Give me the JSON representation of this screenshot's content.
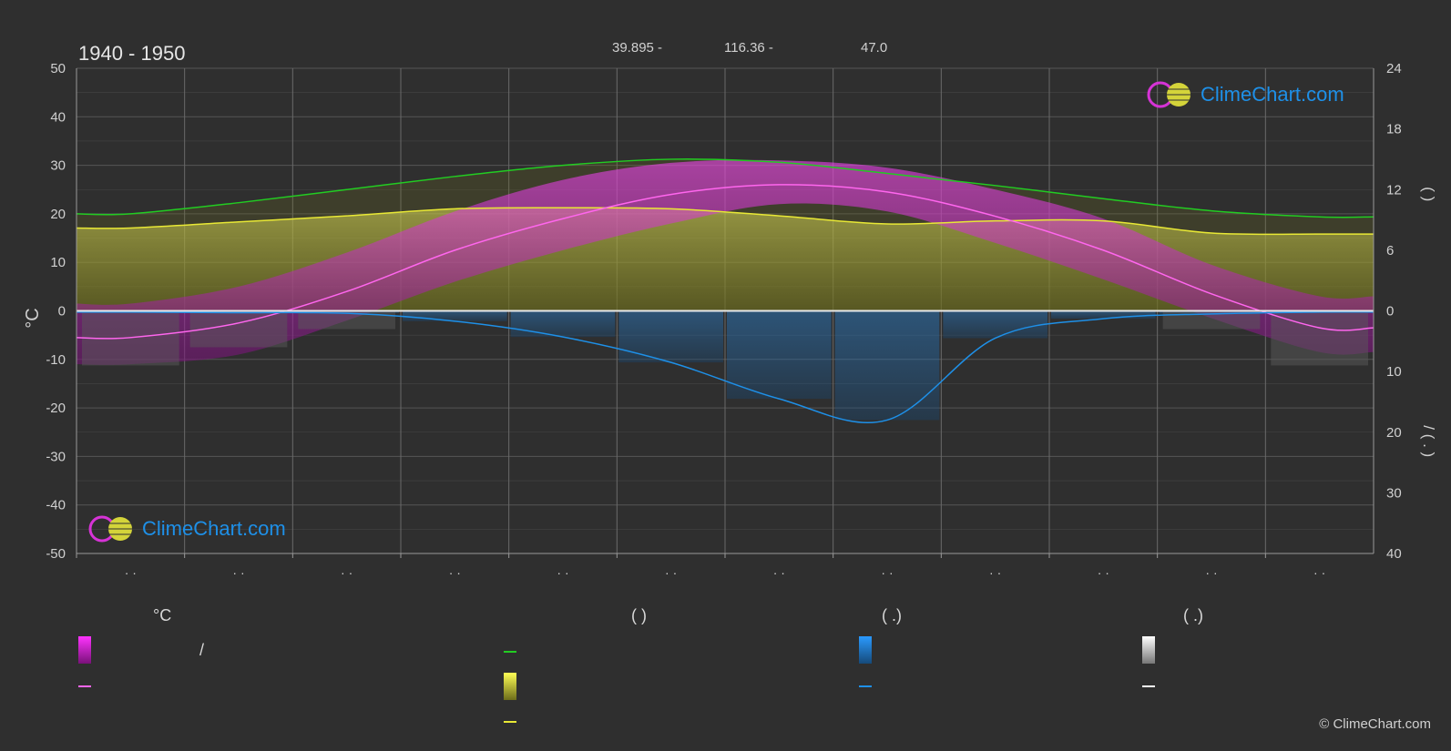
{
  "header": {
    "period": "1940 - 1950",
    "lat": "39.895 -",
    "lon": "116.36 -",
    "elev": "47.0"
  },
  "logo_text": "ClimeChart.com",
  "copyright": "© ClimeChart.com",
  "colors": {
    "background": "#2f2f2f",
    "grid": "#5a5a5a",
    "daylight": "#22cc22",
    "sunshine": "#e8e835",
    "temp_mean": "#ff66ee",
    "temp_band": "#cc22cc",
    "precip": "#1e90e8",
    "snow": "#ffffff"
  },
  "legend": {
    "temp_header": "°C",
    "col2_header": "(          )",
    "col3_header": "(   .)",
    "col4_header": "(   .)",
    "slash": "/"
  },
  "chart_data": {
    "type": "line",
    "months": 12,
    "left_axis": {
      "label": "°C",
      "range": [
        -50,
        50
      ],
      "ticks": [
        50,
        40,
        30,
        20,
        10,
        0,
        -10,
        -20,
        -30,
        -40,
        -50
      ]
    },
    "right_axis_top": {
      "label": "( )",
      "range": [
        0,
        24
      ],
      "ticks": [
        24,
        18,
        12,
        6,
        0
      ]
    },
    "right_axis_bottom": {
      "label": "/ ( . )",
      "range": [
        0,
        40
      ],
      "ticks": [
        0,
        10,
        20,
        30,
        40
      ]
    },
    "x_tick_labels": [
      "· ·",
      "· ·",
      "· ·",
      "· ·",
      "· ·",
      "· ·",
      "· ·",
      "· ·",
      "· ·",
      "· ·",
      "· ·",
      "· ·"
    ],
    "series": [
      {
        "key": "daylight",
        "unit": "hours",
        "values": [
          9.6,
          10.7,
          12.0,
          13.3,
          14.4,
          15.0,
          14.7,
          13.6,
          12.4,
          11.1,
          9.9,
          9.3
        ]
      },
      {
        "key": "sunshine",
        "unit": "hours",
        "values": [
          8.2,
          8.8,
          9.4,
          10.1,
          10.2,
          10.1,
          9.4,
          8.6,
          8.9,
          8.9,
          7.7,
          7.6
        ]
      },
      {
        "key": "temp_mean",
        "unit": "°C",
        "values": [
          -5.5,
          -2.5,
          4.0,
          12.5,
          19.0,
          24.0,
          26.0,
          24.5,
          19.5,
          12.5,
          3.5,
          -3.5
        ]
      },
      {
        "key": "temp_max",
        "unit": "°C",
        "values": [
          1.5,
          5.0,
          12.0,
          20.5,
          27.0,
          30.5,
          31.0,
          29.5,
          25.0,
          19.0,
          9.5,
          3.0
        ]
      },
      {
        "key": "temp_min",
        "unit": "°C",
        "values": [
          -11.0,
          -9.0,
          -2.0,
          6.0,
          12.5,
          18.0,
          22.0,
          20.5,
          14.0,
          6.5,
          -1.5,
          -8.5
        ]
      },
      {
        "key": "precip",
        "unit": "mm/day",
        "values": [
          0.2,
          0.3,
          0.4,
          1.7,
          4.3,
          8.5,
          14.5,
          18.0,
          4.5,
          1.3,
          0.5,
          0.2
        ]
      },
      {
        "key": "snow",
        "unit": "mm/day",
        "values": [
          0.3,
          0.2,
          0.1,
          0.0,
          0.0,
          0.0,
          0.0,
          0.0,
          0.0,
          0.0,
          0.1,
          0.3
        ]
      }
    ]
  }
}
